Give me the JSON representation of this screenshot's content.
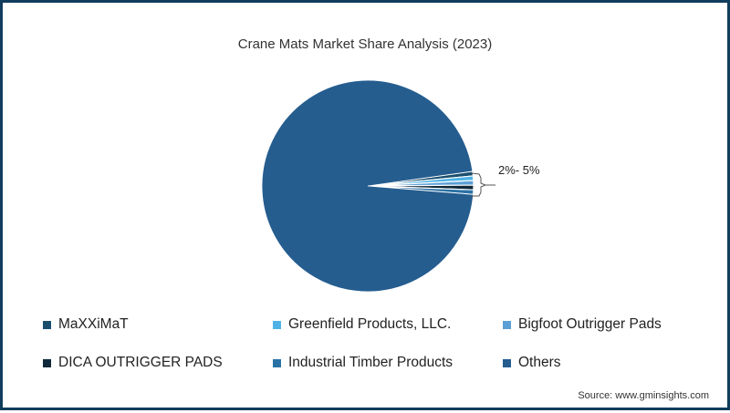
{
  "chart_data": {
    "type": "pie",
    "title": "Crane Mats Market Share Analysis (2023)",
    "categories": [
      "MaXXiMaT",
      "Greenfield Products, LLC.",
      "Bigfoot Outrigger Pads",
      "DICA OUTRIGGER PADS",
      "Industrial Timber Products",
      "Others"
    ],
    "values": [
      0.7,
      0.7,
      0.7,
      0.7,
      0.7,
      96.5
    ],
    "colors": [
      "#1a4e6e",
      "#4fb3e6",
      "#5b9fd6",
      "#10293a",
      "#2a72a6",
      "#255d8f"
    ],
    "annotations": [
      {
        "text": "2%- 5%",
        "target": "grouped small slices"
      }
    ],
    "legend_position": "bottom",
    "source": "Source: www.gminsights.com"
  },
  "legend": [
    {
      "label": "MaXXiMaT",
      "color": "#1a4e6e"
    },
    {
      "label": "Greenfield Products, LLC.",
      "color": "#4fb3e6"
    },
    {
      "label": "Bigfoot Outrigger Pads",
      "color": "#5b9fd6"
    },
    {
      "label": "DICA OUTRIGGER PADS",
      "color": "#10293a"
    },
    {
      "label": "Industrial Timber Products",
      "color": "#2a72a6"
    },
    {
      "label": "Others",
      "color": "#255d8f"
    }
  ],
  "annotation_label": "2%- 5%",
  "source_label": "Source: www.gminsights.com"
}
